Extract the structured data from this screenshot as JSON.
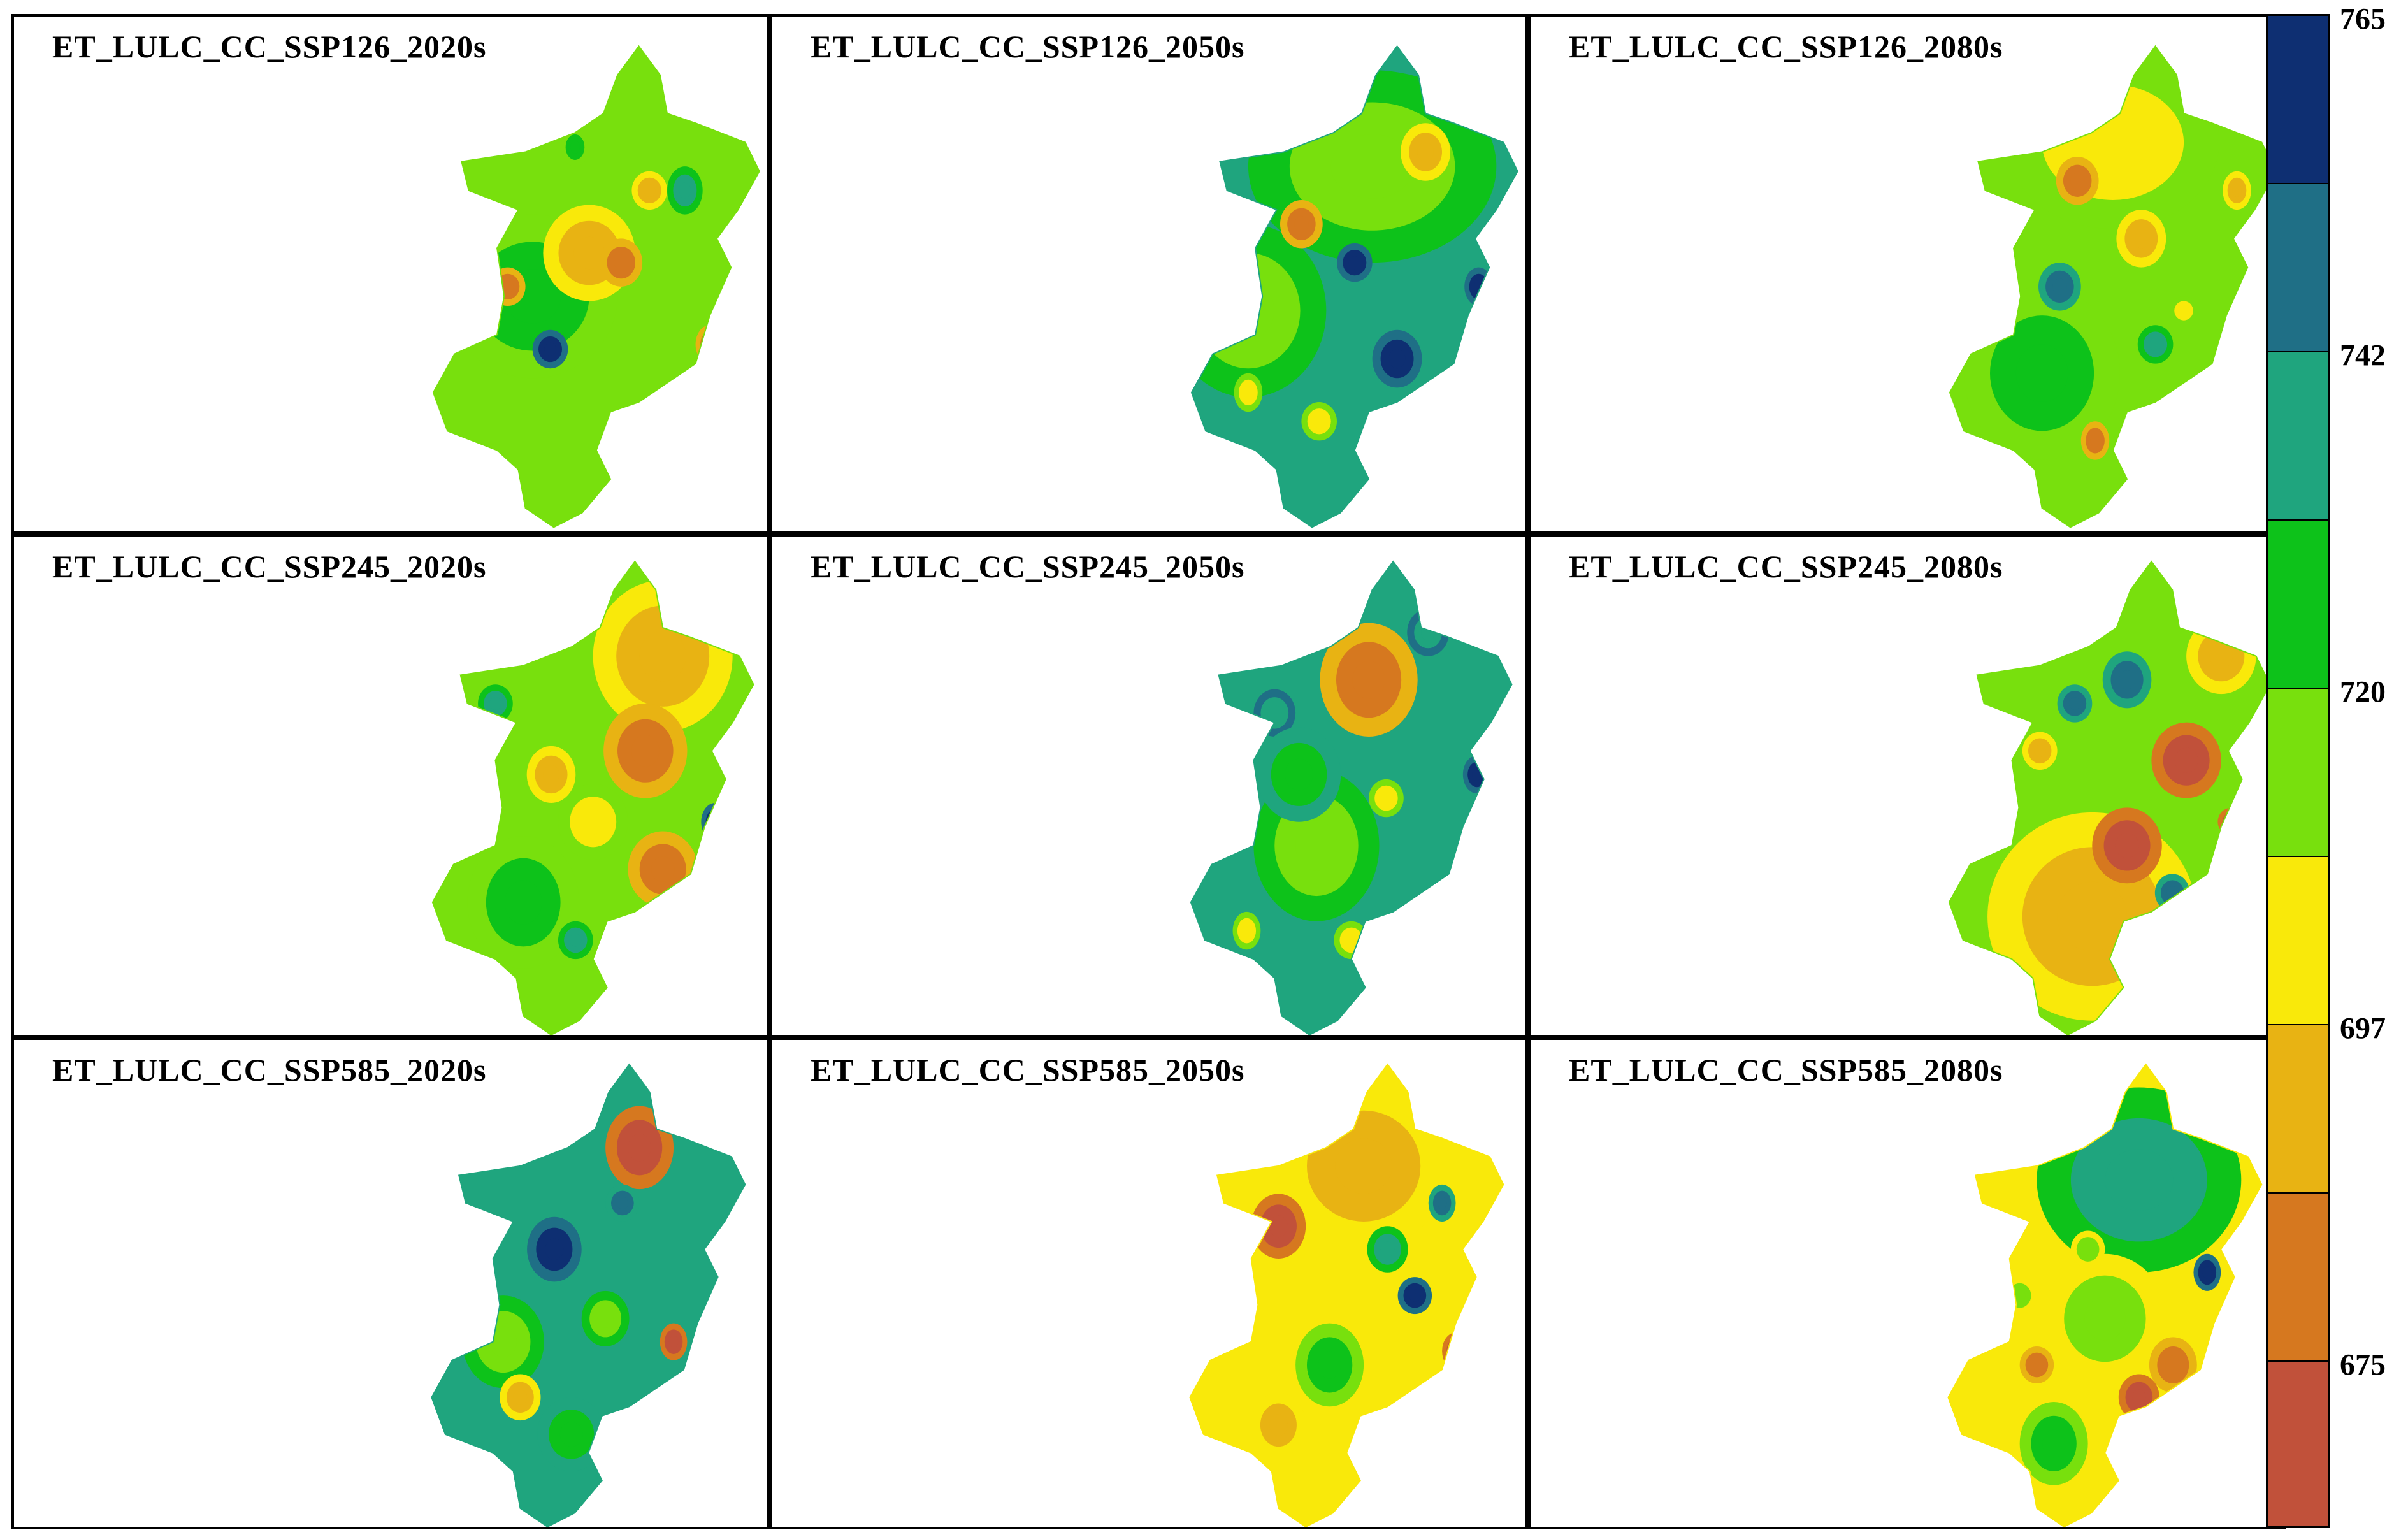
{
  "panels": [
    {
      "title": "ET_LULC_CC_SSP126_2020s",
      "base": 4,
      "blobs": [
        [
          0.32,
          0.52,
          0.24,
          0.17,
          3
        ],
        [
          0.48,
          0.43,
          0.13,
          0.1,
          6
        ],
        [
          0.57,
          0.45,
          0.06,
          0.05,
          7
        ],
        [
          0.37,
          0.63,
          0.05,
          0.04,
          0
        ],
        [
          0.25,
          0.5,
          0.05,
          0.04,
          7
        ],
        [
          0.75,
          0.3,
          0.05,
          0.05,
          2
        ],
        [
          0.65,
          0.3,
          0.05,
          0.04,
          6
        ],
        [
          0.7,
          0.8,
          0.05,
          0.04,
          1
        ],
        [
          0.82,
          0.62,
          0.04,
          0.04,
          7
        ],
        [
          0.44,
          0.21,
          0.04,
          0.04,
          3
        ]
      ]
    },
    {
      "title": "ET_LULC_CC_SSP126_2050s",
      "base": 2,
      "blobs": [
        [
          0.55,
          0.25,
          0.35,
          0.2,
          4
        ],
        [
          0.2,
          0.55,
          0.22,
          0.18,
          4
        ],
        [
          0.35,
          0.37,
          0.06,
          0.05,
          7
        ],
        [
          0.7,
          0.22,
          0.07,
          0.06,
          6
        ],
        [
          0.62,
          0.65,
          0.07,
          0.06,
          0
        ],
        [
          0.4,
          0.78,
          0.05,
          0.04,
          5
        ],
        [
          0.5,
          0.45,
          0.05,
          0.04,
          0
        ],
        [
          0.78,
          0.12,
          0.05,
          0.04,
          0
        ],
        [
          0.85,
          0.5,
          0.04,
          0.04,
          0
        ],
        [
          0.2,
          0.72,
          0.04,
          0.04,
          5
        ]
      ]
    },
    {
      "title": "ET_LULC_CC_SSP126_2080s",
      "base": 4,
      "blobs": [
        [
          0.5,
          0.2,
          0.3,
          0.18,
          5
        ],
        [
          0.3,
          0.68,
          0.22,
          0.18,
          3
        ],
        [
          0.58,
          0.4,
          0.07,
          0.06,
          6
        ],
        [
          0.4,
          0.28,
          0.06,
          0.05,
          7
        ],
        [
          0.78,
          0.1,
          0.05,
          0.04,
          0
        ],
        [
          0.35,
          0.5,
          0.06,
          0.05,
          1
        ],
        [
          0.62,
          0.62,
          0.05,
          0.04,
          2
        ],
        [
          0.45,
          0.82,
          0.04,
          0.04,
          7
        ],
        [
          0.85,
          0.3,
          0.04,
          0.04,
          6
        ],
        [
          0.7,
          0.55,
          0.04,
          0.03,
          5
        ]
      ]
    },
    {
      "title": "ET_LULC_CC_SSP245_2020s",
      "base": 4,
      "blobs": [
        [
          0.7,
          0.2,
          0.2,
          0.16,
          6
        ],
        [
          0.65,
          0.4,
          0.12,
          0.1,
          7
        ],
        [
          0.7,
          0.65,
          0.1,
          0.08,
          7
        ],
        [
          0.38,
          0.45,
          0.07,
          0.06,
          6
        ],
        [
          0.3,
          0.72,
          0.16,
          0.14,
          3
        ],
        [
          0.45,
          0.8,
          0.05,
          0.04,
          2
        ],
        [
          0.22,
          0.3,
          0.05,
          0.04,
          2
        ],
        [
          0.8,
          0.85,
          0.05,
          0.04,
          0
        ],
        [
          0.85,
          0.55,
          0.04,
          0.04,
          0
        ],
        [
          0.5,
          0.55,
          0.1,
          0.08,
          5
        ]
      ]
    },
    {
      "title": "ET_LULC_CC_SSP245_2050s",
      "base": 2,
      "blobs": [
        [
          0.55,
          0.25,
          0.14,
          0.12,
          7
        ],
        [
          0.4,
          0.6,
          0.18,
          0.16,
          4
        ],
        [
          0.28,
          0.32,
          0.06,
          0.05,
          2
        ],
        [
          0.72,
          0.15,
          0.06,
          0.05,
          2
        ],
        [
          0.8,
          0.72,
          0.04,
          0.04,
          0
        ],
        [
          0.5,
          0.8,
          0.05,
          0.04,
          5
        ],
        [
          0.2,
          0.78,
          0.04,
          0.04,
          5
        ],
        [
          0.86,
          0.45,
          0.04,
          0.04,
          0
        ],
        [
          0.6,
          0.5,
          0.05,
          0.04,
          5
        ],
        [
          0.35,
          0.45,
          0.12,
          0.1,
          3
        ]
      ]
    },
    {
      "title": "ET_LULC_CC_SSP245_2080s",
      "base": 4,
      "blobs": [
        [
          0.45,
          0.75,
          0.3,
          0.22,
          6
        ],
        [
          0.55,
          0.6,
          0.1,
          0.08,
          8
        ],
        [
          0.72,
          0.42,
          0.1,
          0.08,
          8
        ],
        [
          0.82,
          0.2,
          0.1,
          0.08,
          6
        ],
        [
          0.55,
          0.25,
          0.07,
          0.06,
          1
        ],
        [
          0.3,
          0.4,
          0.05,
          0.04,
          6
        ],
        [
          0.68,
          0.7,
          0.05,
          0.04,
          1
        ],
        [
          0.4,
          0.3,
          0.05,
          0.04,
          1
        ],
        [
          0.6,
          0.85,
          0.04,
          0.04,
          5
        ],
        [
          0.85,
          0.55,
          0.04,
          0.03,
          8
        ]
      ]
    },
    {
      "title": "ET_LULC_CC_SSP585_2020s",
      "base": 2,
      "blobs": [
        [
          0.65,
          0.18,
          0.1,
          0.09,
          8
        ],
        [
          0.4,
          0.4,
          0.08,
          0.07,
          0
        ],
        [
          0.25,
          0.6,
          0.12,
          0.1,
          4
        ],
        [
          0.55,
          0.55,
          0.07,
          0.06,
          4
        ],
        [
          0.75,
          0.6,
          0.04,
          0.04,
          8
        ],
        [
          0.3,
          0.72,
          0.06,
          0.05,
          6
        ],
        [
          0.15,
          0.45,
          0.05,
          0.04,
          2
        ],
        [
          0.6,
          0.3,
          0.05,
          0.04,
          1
        ],
        [
          0.7,
          0.85,
          0.04,
          0.04,
          4
        ],
        [
          0.45,
          0.8,
          0.1,
          0.08,
          3
        ]
      ]
    },
    {
      "title": "ET_LULC_CC_SSP585_2050s",
      "base": 5,
      "blobs": [
        [
          0.55,
          0.22,
          0.25,
          0.18,
          6
        ],
        [
          0.3,
          0.35,
          0.08,
          0.07,
          8
        ],
        [
          0.45,
          0.65,
          0.1,
          0.09,
          3
        ],
        [
          0.7,
          0.5,
          0.05,
          0.04,
          0
        ],
        [
          0.78,
          0.3,
          0.04,
          0.04,
          1
        ],
        [
          0.3,
          0.78,
          0.08,
          0.07,
          6
        ],
        [
          0.62,
          0.4,
          0.06,
          0.05,
          2
        ],
        [
          0.82,
          0.62,
          0.04,
          0.04,
          8
        ],
        [
          0.4,
          0.15,
          0.05,
          0.04,
          7
        ],
        [
          0.6,
          0.85,
          0.05,
          0.04,
          4
        ]
      ]
    },
    {
      "title": "ET_LULC_CC_SSP585_2080s",
      "base": 5,
      "blobs": [
        [
          0.6,
          0.25,
          0.3,
          0.2,
          2
        ],
        [
          0.5,
          0.55,
          0.18,
          0.14,
          4
        ],
        [
          0.7,
          0.65,
          0.07,
          0.06,
          7
        ],
        [
          0.6,
          0.72,
          0.06,
          0.05,
          8
        ],
        [
          0.35,
          0.82,
          0.1,
          0.09,
          3
        ],
        [
          0.8,
          0.45,
          0.04,
          0.04,
          0
        ],
        [
          0.25,
          0.5,
          0.05,
          0.04,
          4
        ],
        [
          0.45,
          0.4,
          0.05,
          0.04,
          4
        ],
        [
          0.75,
          0.8,
          0.04,
          0.04,
          1
        ],
        [
          0.3,
          0.65,
          0.05,
          0.04,
          7
        ]
      ]
    }
  ],
  "legend": {
    "colors": [
      "#0e2f72",
      "#1f6f86",
      "#1fa57e",
      "#0dc21a",
      "#78e00d",
      "#f9e90a",
      "#e8b313",
      "#d6781f",
      "#c1513a"
    ],
    "labels": [
      {
        "text": "765",
        "at": 0.0
      },
      {
        "text": "742",
        "at": 2.0
      },
      {
        "text": "720",
        "at": 4.0
      },
      {
        "text": "697",
        "at": 6.0
      },
      {
        "text": "675",
        "at": 8.0
      }
    ]
  }
}
